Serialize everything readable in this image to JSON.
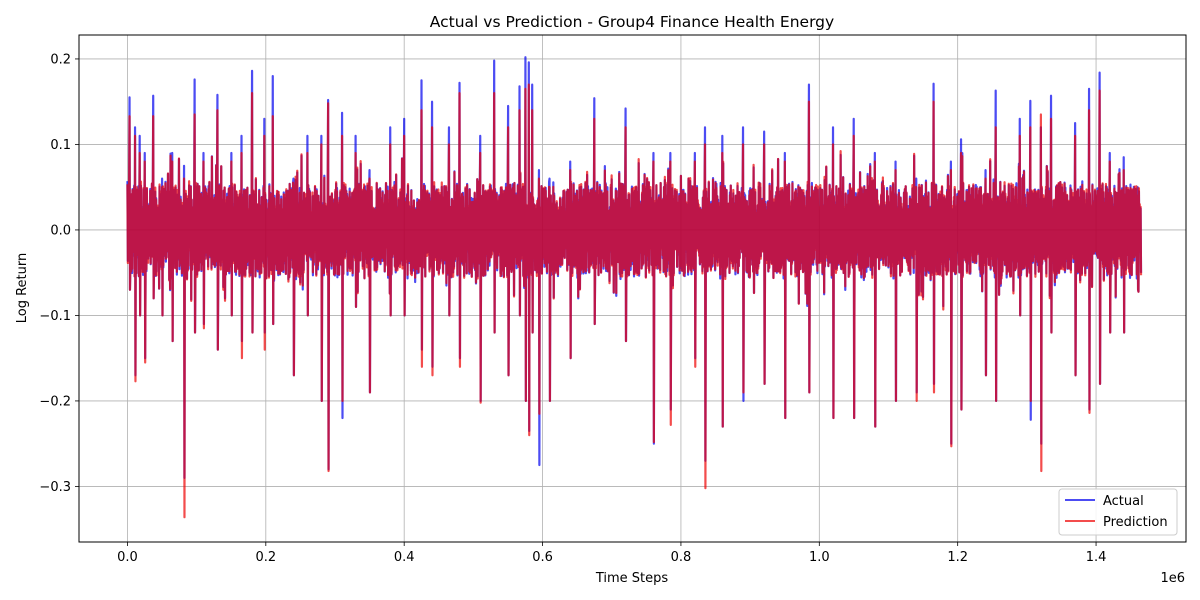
{
  "chart_data": {
    "type": "line",
    "title": "Actual vs Prediction - Group4 Finance Health Energy",
    "xlabel": "Time Steps",
    "ylabel": "Log Return",
    "x_offset_label": "1e6",
    "xlim": [
      -0.07,
      1.53
    ],
    "ylim": [
      -0.365,
      0.228
    ],
    "x_ticks": [
      0.0,
      0.2,
      0.4,
      0.6,
      0.8,
      1.0,
      1.2,
      1.4
    ],
    "x_tick_labels": [
      "0.0",
      "0.2",
      "0.4",
      "0.6",
      "0.8",
      "1.0",
      "1.2",
      "1.4"
    ],
    "y_ticks": [
      0.2,
      0.1,
      0.0,
      -0.1,
      -0.2,
      -0.3
    ],
    "y_tick_labels": [
      "0.2",
      "0.1",
      "0.0",
      "−0.1",
      "−0.2",
      "−0.3"
    ],
    "grid": true,
    "legend_position": "lower-right",
    "x_range_data": [
      0.0,
      1.465
    ],
    "series": [
      {
        "name": "Actual",
        "color": "#0000ee",
        "opacity": 0.7,
        "spikes": [
          [
            0.003,
            0.155,
            -0.07
          ],
          [
            0.011,
            0.12,
            -0.17
          ],
          [
            0.018,
            0.11,
            -0.1
          ],
          [
            0.025,
            0.09,
            -0.15
          ],
          [
            0.037,
            0.157,
            -0.08
          ],
          [
            0.05,
            0.06,
            -0.1
          ],
          [
            0.065,
            0.09,
            -0.13
          ],
          [
            0.082,
            0.075,
            -0.29
          ],
          [
            0.097,
            0.176,
            -0.12
          ],
          [
            0.11,
            0.09,
            -0.11
          ],
          [
            0.13,
            0.158,
            -0.14
          ],
          [
            0.15,
            0.09,
            -0.1
          ],
          [
            0.165,
            0.11,
            -0.13
          ],
          [
            0.18,
            0.186,
            -0.12
          ],
          [
            0.198,
            0.13,
            -0.12
          ],
          [
            0.21,
            0.18,
            -0.11
          ],
          [
            0.24,
            0.06,
            -0.17
          ],
          [
            0.26,
            0.11,
            -0.1
          ],
          [
            0.28,
            0.11,
            -0.2
          ],
          [
            0.29,
            0.152,
            -0.28
          ],
          [
            0.31,
            0.137,
            -0.22
          ],
          [
            0.33,
            0.11,
            -0.09
          ],
          [
            0.35,
            0.07,
            -0.19
          ],
          [
            0.38,
            0.12,
            -0.1
          ],
          [
            0.4,
            0.13,
            -0.1
          ],
          [
            0.425,
            0.175,
            -0.14
          ],
          [
            0.44,
            0.15,
            -0.16
          ],
          [
            0.465,
            0.12,
            -0.1
          ],
          [
            0.48,
            0.172,
            -0.15
          ],
          [
            0.51,
            0.11,
            -0.2
          ],
          [
            0.53,
            0.198,
            -0.12
          ],
          [
            0.55,
            0.145,
            -0.17
          ],
          [
            0.567,
            0.168,
            -0.1
          ],
          [
            0.575,
            0.202,
            -0.2
          ],
          [
            0.58,
            0.196,
            -0.235
          ],
          [
            0.585,
            0.17,
            -0.12
          ],
          [
            0.595,
            0.07,
            -0.275
          ],
          [
            0.61,
            0.06,
            -0.2
          ],
          [
            0.64,
            0.08,
            -0.15
          ],
          [
            0.675,
            0.154,
            -0.11
          ],
          [
            0.72,
            0.142,
            -0.13
          ],
          [
            0.76,
            0.09,
            -0.25
          ],
          [
            0.785,
            0.09,
            -0.21
          ],
          [
            0.82,
            0.09,
            -0.15
          ],
          [
            0.835,
            0.12,
            -0.27
          ],
          [
            0.86,
            0.11,
            -0.23
          ],
          [
            0.89,
            0.12,
            -0.2
          ],
          [
            0.92,
            0.115,
            -0.18
          ],
          [
            0.95,
            0.09,
            -0.22
          ],
          [
            0.985,
            0.17,
            -0.19
          ],
          [
            1.02,
            0.12,
            -0.22
          ],
          [
            1.05,
            0.13,
            -0.22
          ],
          [
            1.08,
            0.09,
            -0.23
          ],
          [
            1.11,
            0.08,
            -0.2
          ],
          [
            1.14,
            0.06,
            -0.19
          ],
          [
            1.165,
            0.171,
            -0.18
          ],
          [
            1.19,
            0.08,
            -0.25
          ],
          [
            1.205,
            0.106,
            -0.21
          ],
          [
            1.24,
            0.07,
            -0.17
          ],
          [
            1.255,
            0.163,
            -0.2
          ],
          [
            1.29,
            0.13,
            -0.1
          ],
          [
            1.305,
            0.151,
            -0.222
          ],
          [
            1.32,
            0.12,
            -0.25
          ],
          [
            1.335,
            0.157,
            -0.12
          ],
          [
            1.37,
            0.125,
            -0.17
          ],
          [
            1.39,
            0.165,
            -0.21
          ],
          [
            1.405,
            0.184,
            -0.18
          ],
          [
            1.42,
            0.09,
            -0.12
          ],
          [
            1.44,
            0.085,
            -0.12
          ],
          [
            1.46,
            0.05,
            -0.07
          ]
        ]
      },
      {
        "name": "Prediction",
        "color": "#ee0000",
        "opacity": 0.7,
        "spikes": [
          [
            0.003,
            0.133,
            -0.07
          ],
          [
            0.011,
            0.11,
            -0.177
          ],
          [
            0.018,
            0.09,
            -0.1
          ],
          [
            0.025,
            0.08,
            -0.155
          ],
          [
            0.037,
            0.133,
            -0.08
          ],
          [
            0.05,
            0.05,
            -0.1
          ],
          [
            0.065,
            0.08,
            -0.13
          ],
          [
            0.082,
            0.06,
            -0.336
          ],
          [
            0.097,
            0.135,
            -0.12
          ],
          [
            0.11,
            0.08,
            -0.115
          ],
          [
            0.13,
            0.14,
            -0.14
          ],
          [
            0.15,
            0.08,
            -0.1
          ],
          [
            0.165,
            0.09,
            -0.15
          ],
          [
            0.18,
            0.16,
            -0.12
          ],
          [
            0.198,
            0.11,
            -0.14
          ],
          [
            0.21,
            0.133,
            -0.11
          ],
          [
            0.24,
            0.05,
            -0.17
          ],
          [
            0.26,
            0.09,
            -0.1
          ],
          [
            0.28,
            0.1,
            -0.2
          ],
          [
            0.29,
            0.148,
            -0.282
          ],
          [
            0.31,
            0.11,
            -0.2
          ],
          [
            0.33,
            0.09,
            -0.09
          ],
          [
            0.35,
            0.06,
            -0.19
          ],
          [
            0.38,
            0.1,
            -0.1
          ],
          [
            0.4,
            0.11,
            -0.1
          ],
          [
            0.425,
            0.14,
            -0.16
          ],
          [
            0.44,
            0.12,
            -0.17
          ],
          [
            0.465,
            0.1,
            -0.1
          ],
          [
            0.48,
            0.16,
            -0.16
          ],
          [
            0.51,
            0.09,
            -0.202
          ],
          [
            0.53,
            0.16,
            -0.12
          ],
          [
            0.55,
            0.12,
            -0.17
          ],
          [
            0.567,
            0.14,
            -0.1
          ],
          [
            0.575,
            0.165,
            -0.2
          ],
          [
            0.58,
            0.17,
            -0.24
          ],
          [
            0.585,
            0.14,
            -0.12
          ],
          [
            0.595,
            0.06,
            -0.215
          ],
          [
            0.61,
            0.05,
            -0.2
          ],
          [
            0.64,
            0.07,
            -0.15
          ],
          [
            0.675,
            0.13,
            -0.11
          ],
          [
            0.72,
            0.12,
            -0.13
          ],
          [
            0.76,
            0.08,
            -0.248
          ],
          [
            0.785,
            0.08,
            -0.228
          ],
          [
            0.82,
            0.08,
            -0.16
          ],
          [
            0.835,
            0.1,
            -0.302
          ],
          [
            0.86,
            0.09,
            -0.23
          ],
          [
            0.89,
            0.1,
            -0.19
          ],
          [
            0.92,
            0.1,
            -0.18
          ],
          [
            0.95,
            0.08,
            -0.22
          ],
          [
            0.985,
            0.15,
            -0.19
          ],
          [
            1.02,
            0.1,
            -0.22
          ],
          [
            1.05,
            0.11,
            -0.22
          ],
          [
            1.08,
            0.08,
            -0.23
          ],
          [
            1.11,
            0.07,
            -0.2
          ],
          [
            1.14,
            0.05,
            -0.2
          ],
          [
            1.165,
            0.15,
            -0.19
          ],
          [
            1.19,
            0.07,
            -0.253
          ],
          [
            1.205,
            0.09,
            -0.21
          ],
          [
            1.24,
            0.06,
            -0.17
          ],
          [
            1.255,
            0.12,
            -0.2
          ],
          [
            1.29,
            0.11,
            -0.1
          ],
          [
            1.305,
            0.12,
            -0.2
          ],
          [
            1.32,
            0.135,
            -0.282
          ],
          [
            1.335,
            0.13,
            -0.12
          ],
          [
            1.37,
            0.11,
            -0.17
          ],
          [
            1.39,
            0.14,
            -0.214
          ],
          [
            1.405,
            0.163,
            -0.18
          ],
          [
            1.42,
            0.08,
            -0.12
          ],
          [
            1.44,
            0.07,
            -0.12
          ],
          [
            1.46,
            0.04,
            -0.07
          ]
        ]
      }
    ]
  }
}
